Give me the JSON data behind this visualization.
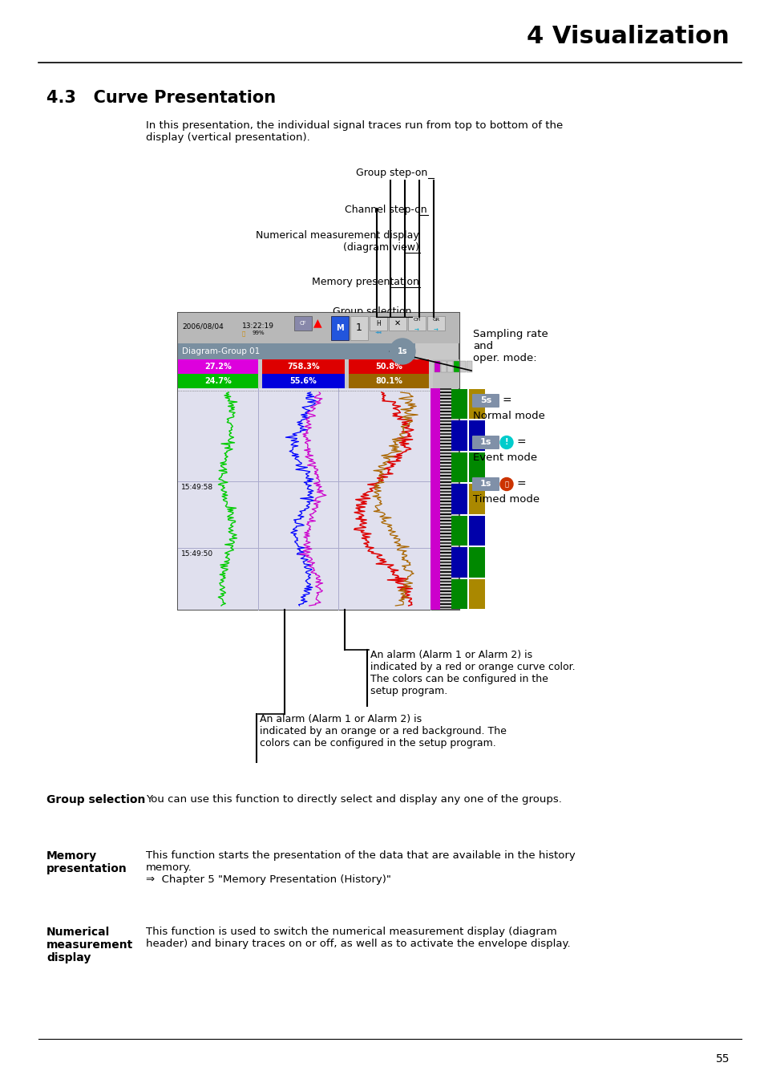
{
  "page_title": "4 Visualization",
  "section_title": "4.3   Curve Presentation",
  "intro_text": "In this presentation, the individual signal traces run from top to bottom of the\ndisplay (vertical presentation).",
  "bg_color": "#ffffff",
  "alarm_text1": "An alarm (Alarm 1 or Alarm 2) is\nindicated by a red or orange curve color.\nThe colors can be configured in the\nsetup program.",
  "alarm_text2": "An alarm (Alarm 1 or Alarm 2) is\nindicated by an orange or a red background. The\ncolors can be configured in the setup program.",
  "bottom_sections": [
    {
      "term": "Group selection",
      "definition": "You can use this function to directly select and display any one of the groups."
    },
    {
      "term": "Memory\npresentation",
      "definition": "This function starts the presentation of the data that are available in the history\nmemory.\n⇒  Chapter 5 \"Memory Presentation (History)\""
    },
    {
      "term": "Numerical\nmeasurement\ndisplay",
      "definition": "This function is used to switch the numerical measurement display (diagram\nheader) and binary traces on or off, as well as to activate the envelope display."
    }
  ],
  "page_number": "55"
}
